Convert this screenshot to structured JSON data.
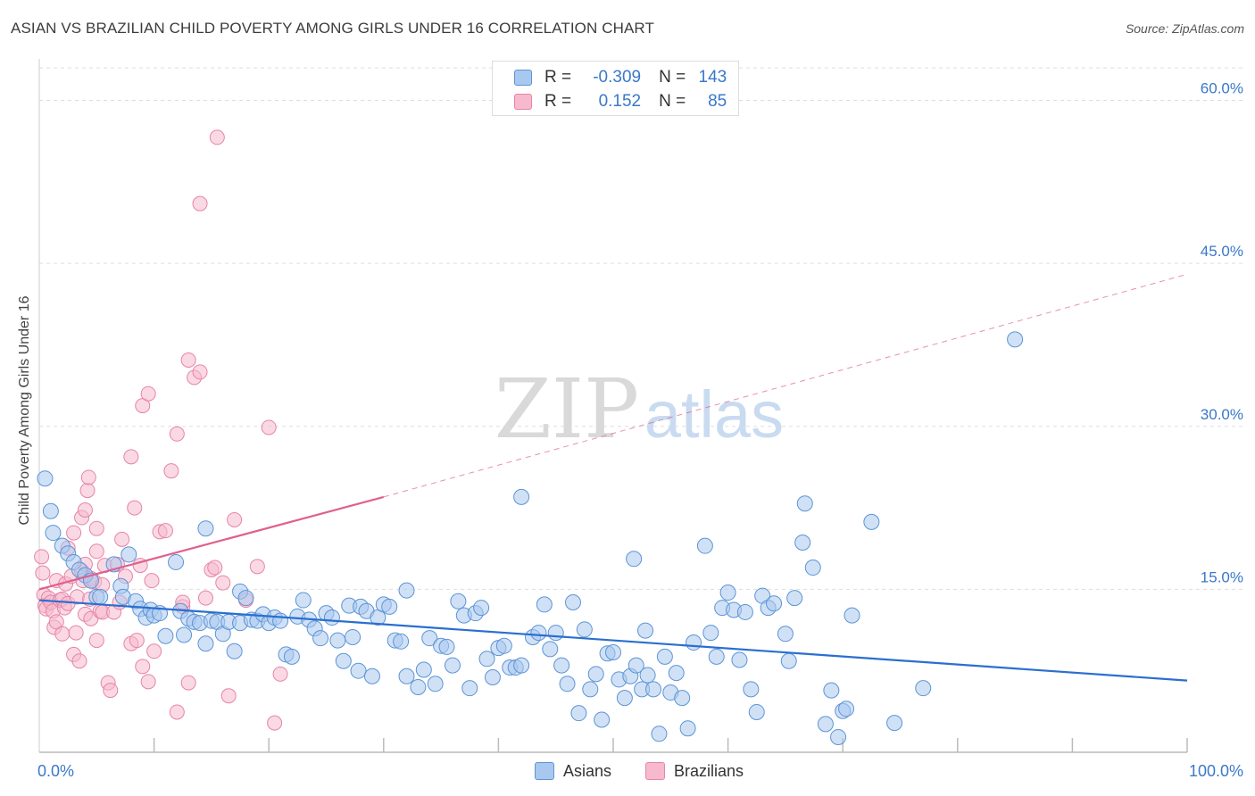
{
  "header": {
    "title": "ASIAN VS BRAZILIAN CHILD POVERTY AMONG GIRLS UNDER 16 CORRELATION CHART",
    "source": "Source: ZipAtlas.com"
  },
  "watermark": {
    "zip": "ZIP",
    "atlas": "atlas"
  },
  "legend": {
    "rows": [
      {
        "r_label": "R =",
        "r_value": "-0.309",
        "n_label": "N =",
        "n_value": "143"
      },
      {
        "r_label": "R =",
        "r_value": "0.152",
        "n_label": "N =",
        "n_value": "85"
      }
    ]
  },
  "bottom_legend": {
    "asians": "Asians",
    "brazilians": "Brazilians"
  },
  "colors": {
    "asians_fill": "#a9c8ef",
    "asians_stroke": "#5c94d6",
    "asians_line": "#2a6fcf",
    "brazilians_fill": "#f6b9ce",
    "brazilians_stroke": "#e784a7",
    "brazilians_line": "#e0608c",
    "tick_label": "#3a78c9",
    "grid": "#dddddd"
  },
  "chart_data": {
    "type": "scatter",
    "title": "ASIAN VS BRAZILIAN CHILD POVERTY AMONG GIRLS UNDER 16 CORRELATION CHART",
    "xlabel": "",
    "ylabel": "Child Poverty Among Girls Under 16",
    "xlim": [
      0,
      100
    ],
    "ylim": [
      0,
      63
    ],
    "x_tick_labels": [
      "0.0%",
      "100.0%"
    ],
    "y_ticks": [
      15,
      30,
      45,
      60
    ],
    "y_tick_labels": [
      "15.0%",
      "30.0%",
      "45.0%",
      "60.0%"
    ],
    "grid": "horizontal dashed",
    "legend_position": "top-center",
    "series": [
      {
        "name": "Asians",
        "r": -0.309,
        "n": 143,
        "trend": {
          "x": [
            0,
            100
          ],
          "y": [
            14.0,
            6.6
          ],
          "style": "solid"
        },
        "points": [
          [
            0.5,
            25.2
          ],
          [
            1,
            22.2
          ],
          [
            1.2,
            20.2
          ],
          [
            2,
            19
          ],
          [
            2.5,
            18.3
          ],
          [
            3,
            17.5
          ],
          [
            3.5,
            16.8
          ],
          [
            4,
            16.3
          ],
          [
            4.5,
            15.8
          ],
          [
            5,
            14.3
          ],
          [
            5.3,
            14.3
          ],
          [
            6.5,
            17.3
          ],
          [
            7.1,
            15.3
          ],
          [
            7.3,
            14.3
          ],
          [
            7.8,
            18.2
          ],
          [
            8.4,
            13.9
          ],
          [
            8.8,
            13.2
          ],
          [
            9.3,
            12.4
          ],
          [
            9.7,
            13.1
          ],
          [
            10,
            12.6
          ],
          [
            10.5,
            12.8
          ],
          [
            11,
            10.7
          ],
          [
            11.9,
            17.5
          ],
          [
            12.3,
            13.0
          ],
          [
            12.6,
            10.8
          ],
          [
            13,
            12.3
          ],
          [
            13.5,
            12.0
          ],
          [
            14,
            11.9
          ],
          [
            14.5,
            10.0
          ],
          [
            14.5,
            20.6
          ],
          [
            15,
            12.1
          ],
          [
            15.5,
            12.0
          ],
          [
            16,
            10.9
          ],
          [
            16.5,
            12.0
          ],
          [
            17,
            9.3
          ],
          [
            17.5,
            11.9
          ],
          [
            17.5,
            14.8
          ],
          [
            18,
            14.2
          ],
          [
            18.5,
            12.2
          ],
          [
            19,
            12.1
          ],
          [
            19.5,
            12.7
          ],
          [
            20,
            11.9
          ],
          [
            20.5,
            12.4
          ],
          [
            21,
            12.1
          ],
          [
            21.5,
            9.0
          ],
          [
            22,
            8.8
          ],
          [
            22.5,
            12.5
          ],
          [
            23,
            14.0
          ],
          [
            23.5,
            12.2
          ],
          [
            24,
            11.4
          ],
          [
            24.5,
            10.5
          ],
          [
            25,
            12.8
          ],
          [
            25.5,
            12.4
          ],
          [
            26,
            10.3
          ],
          [
            26.5,
            8.4
          ],
          [
            27,
            13.5
          ],
          [
            27.3,
            10.6
          ],
          [
            27.8,
            7.5
          ],
          [
            28,
            13.4
          ],
          [
            28.5,
            13.0
          ],
          [
            29,
            7.0
          ],
          [
            29.5,
            12.4
          ],
          [
            30,
            13.6
          ],
          [
            30.5,
            13.4
          ],
          [
            31,
            10.3
          ],
          [
            31.5,
            10.2
          ],
          [
            32,
            14.9
          ],
          [
            32,
            7.0
          ],
          [
            33,
            6.0
          ],
          [
            33.5,
            7.6
          ],
          [
            34,
            10.5
          ],
          [
            34.5,
            6.3
          ],
          [
            35,
            9.8
          ],
          [
            35.5,
            9.7
          ],
          [
            36,
            8.0
          ],
          [
            36.5,
            13.9
          ],
          [
            37,
            12.6
          ],
          [
            37.5,
            5.9
          ],
          [
            38,
            12.8
          ],
          [
            38.5,
            13.3
          ],
          [
            39,
            8.6
          ],
          [
            39.5,
            6.9
          ],
          [
            40,
            9.6
          ],
          [
            40.5,
            9.8
          ],
          [
            41,
            7.8
          ],
          [
            41.5,
            7.8
          ],
          [
            42,
            8.0
          ],
          [
            42,
            23.5
          ],
          [
            43,
            10.6
          ],
          [
            43.5,
            11.0
          ],
          [
            44,
            13.6
          ],
          [
            44.5,
            9.5
          ],
          [
            45,
            11.0
          ],
          [
            45.5,
            8.0
          ],
          [
            46,
            6.3
          ],
          [
            46.5,
            13.8
          ],
          [
            47,
            3.6
          ],
          [
            47.5,
            11.3
          ],
          [
            48,
            5.8
          ],
          [
            48.5,
            7.2
          ],
          [
            49,
            3.0
          ],
          [
            49.5,
            9.1
          ],
          [
            50,
            9.2
          ],
          [
            50.5,
            6.7
          ],
          [
            51,
            5.0
          ],
          [
            51.5,
            7.0
          ],
          [
            51.8,
            17.8
          ],
          [
            52,
            8.0
          ],
          [
            52.5,
            5.8
          ],
          [
            52.8,
            11.2
          ],
          [
            53,
            7.1
          ],
          [
            53.5,
            5.8
          ],
          [
            54,
            1.7
          ],
          [
            54.5,
            8.8
          ],
          [
            55,
            5.5
          ],
          [
            55.5,
            7.3
          ],
          [
            56,
            5.0
          ],
          [
            56.5,
            2.2
          ],
          [
            57,
            10.1
          ],
          [
            58,
            19.0
          ],
          [
            58.5,
            11.0
          ],
          [
            59,
            8.8
          ],
          [
            59.5,
            13.3
          ],
          [
            60,
            14.7
          ],
          [
            60.5,
            13.1
          ],
          [
            61,
            8.5
          ],
          [
            61.5,
            12.9
          ],
          [
            62,
            5.8
          ],
          [
            62.5,
            3.7
          ],
          [
            63,
            14.4
          ],
          [
            63.5,
            13.3
          ],
          [
            64,
            13.7
          ],
          [
            65,
            10.9
          ],
          [
            65.3,
            8.4
          ],
          [
            65.8,
            14.2
          ],
          [
            66.5,
            19.3
          ],
          [
            66.7,
            22.9
          ],
          [
            67.4,
            17.0
          ],
          [
            68.5,
            2.6
          ],
          [
            69,
            5.7
          ],
          [
            69.6,
            1.4
          ],
          [
            70,
            3.8
          ],
          [
            70.3,
            4.0
          ],
          [
            70.8,
            12.6
          ],
          [
            72.5,
            21.2
          ],
          [
            74.5,
            2.7
          ],
          [
            77,
            5.9
          ],
          [
            85,
            38.0
          ]
        ]
      },
      {
        "name": "Brazilians",
        "r": 0.152,
        "n": 85,
        "trend": {
          "x": [
            0,
            30
          ],
          "y": [
            15.0,
            23.5
          ],
          "style": "solid",
          "extension": {
            "x": [
              30,
              100
            ],
            "y": [
              23.5,
              44.0
            ],
            "style": "dashed"
          }
        },
        "points": [
          [
            0.2,
            18.0
          ],
          [
            0.3,
            16.5
          ],
          [
            0.4,
            14.5
          ],
          [
            0.5,
            13.5
          ],
          [
            0.6,
            13.2
          ],
          [
            0.8,
            14.2
          ],
          [
            1,
            13.8
          ],
          [
            1.2,
            13.0
          ],
          [
            1.3,
            11.5
          ],
          [
            1.5,
            12.0
          ],
          [
            1.5,
            15.8
          ],
          [
            1.8,
            14.0
          ],
          [
            2,
            14.1
          ],
          [
            2,
            10.9
          ],
          [
            2.2,
            13.3
          ],
          [
            2.3,
            15.5
          ],
          [
            2.5,
            13.7
          ],
          [
            2.5,
            18.8
          ],
          [
            2.8,
            16.2
          ],
          [
            3,
            9.0
          ],
          [
            3,
            20.2
          ],
          [
            3.2,
            11.0
          ],
          [
            3.3,
            14.3
          ],
          [
            3.5,
            8.4
          ],
          [
            3.7,
            16.7
          ],
          [
            3.7,
            21.6
          ],
          [
            3.8,
            15.8
          ],
          [
            4,
            12.7
          ],
          [
            4,
            17.3
          ],
          [
            4,
            22.3
          ],
          [
            4.2,
            24.1
          ],
          [
            4.3,
            25.3
          ],
          [
            4.4,
            14.1
          ],
          [
            4.5,
            12.3
          ],
          [
            4.5,
            16.0
          ],
          [
            4.8,
            15.7
          ],
          [
            5,
            10.3
          ],
          [
            5,
            18.5
          ],
          [
            5,
            20.6
          ],
          [
            5.3,
            13.0
          ],
          [
            5.5,
            12.9
          ],
          [
            5.5,
            15.4
          ],
          [
            5.7,
            17.2
          ],
          [
            6,
            6.4
          ],
          [
            6.2,
            5.7
          ],
          [
            6.5,
            12.9
          ],
          [
            6.8,
            17.3
          ],
          [
            7,
            13.8
          ],
          [
            7.2,
            19.6
          ],
          [
            7.5,
            16.2
          ],
          [
            8,
            10.0
          ],
          [
            8,
            27.2
          ],
          [
            8.3,
            22.5
          ],
          [
            8.5,
            10.3
          ],
          [
            8.8,
            17.2
          ],
          [
            9,
            31.9
          ],
          [
            9,
            7.9
          ],
          [
            9.5,
            33.0
          ],
          [
            9.5,
            6.5
          ],
          [
            9.8,
            15.8
          ],
          [
            10,
            9.3
          ],
          [
            10.5,
            20.3
          ],
          [
            11,
            20.4
          ],
          [
            11.5,
            25.9
          ],
          [
            12,
            29.3
          ],
          [
            12,
            3.7
          ],
          [
            12.5,
            13.4
          ],
          [
            12.5,
            13.8
          ],
          [
            13,
            6.4
          ],
          [
            13,
            36.1
          ],
          [
            13.5,
            34.5
          ],
          [
            14,
            50.5
          ],
          [
            14,
            35.0
          ],
          [
            14.5,
            14.2
          ],
          [
            15,
            16.8
          ],
          [
            15.3,
            17.0
          ],
          [
            15.5,
            56.6
          ],
          [
            16,
            15.6
          ],
          [
            16.5,
            5.2
          ],
          [
            17,
            21.4
          ],
          [
            18,
            14.0
          ],
          [
            19,
            17.1
          ],
          [
            20,
            29.9
          ],
          [
            20.5,
            2.7
          ],
          [
            21,
            7.2
          ]
        ]
      }
    ]
  }
}
